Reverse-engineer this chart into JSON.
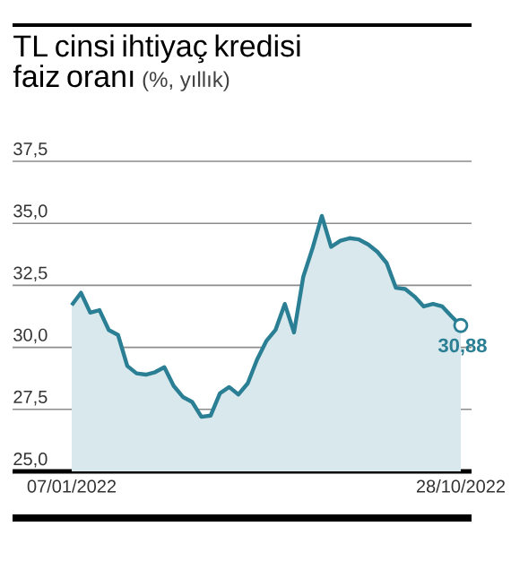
{
  "chart_data": {
    "type": "area",
    "title": "TL cinsi ihtiyaç kredisi faiz oranı",
    "subtitle": "(%, yıllık)",
    "categories": [
      "07/01/2022",
      null,
      null,
      null,
      null,
      null,
      null,
      null,
      null,
      null,
      null,
      null,
      null,
      null,
      null,
      null,
      null,
      null,
      null,
      null,
      null,
      null,
      null,
      null,
      null,
      null,
      null,
      null,
      null,
      null,
      null,
      null,
      null,
      null,
      null,
      null,
      null,
      null,
      null,
      null,
      null,
      null,
      "28/10/2022"
    ],
    "series": [
      {
        "color": "#2a7f94",
        "values": [
          31.7,
          32.2,
          31.4,
          31.5,
          30.7,
          30.5,
          29.25,
          28.95,
          28.9,
          29.0,
          29.2,
          28.45,
          28.0,
          27.8,
          27.2,
          27.25,
          28.15,
          28.4,
          28.1,
          28.55,
          29.5,
          30.25,
          30.7,
          31.75,
          30.6,
          32.85,
          34.0,
          35.3,
          34.05,
          34.3,
          34.4,
          34.35,
          34.15,
          33.85,
          33.4,
          32.4,
          32.35,
          32.05,
          31.65,
          31.75,
          31.65,
          31.25,
          30.88
        ]
      }
    ],
    "ylim": [
      25,
      37.5
    ],
    "yticks": [
      {
        "value": 25,
        "label": "25,0"
      },
      {
        "value": 27.5,
        "label": "27,5"
      },
      {
        "value": 30,
        "label": "30,0"
      },
      {
        "value": 32.5,
        "label": "32,5"
      },
      {
        "value": 35,
        "label": "35,0"
      },
      {
        "value": 37.5,
        "label": "37,5"
      }
    ],
    "grid": "y",
    "annotations": [
      {
        "text": "30,88",
        "x": "28/10/2022",
        "y": 30.88
      }
    ]
  }
}
